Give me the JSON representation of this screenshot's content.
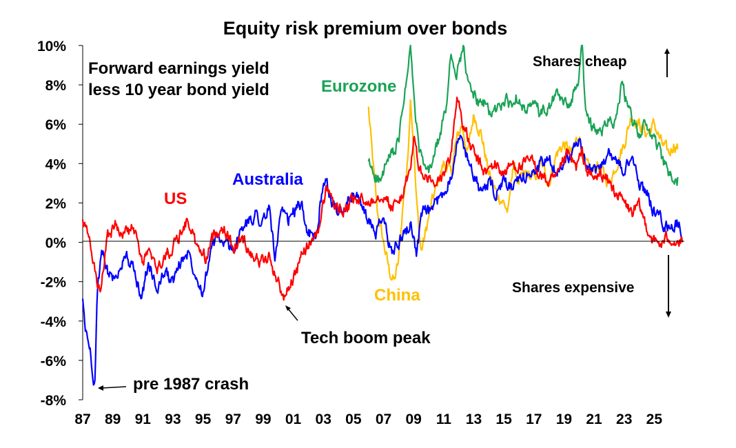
{
  "chart_data": {
    "type": "line",
    "title": "Equity risk premium over bonds",
    "subtitle_lines": [
      "Forward earnings yield",
      "less 10 year bond yield"
    ],
    "xlabel": "",
    "ylabel": "",
    "xlim": [
      1987,
      2027
    ],
    "ylim": [
      -8,
      10
    ],
    "y_ticks": [
      -8,
      -6,
      -4,
      -2,
      0,
      2,
      4,
      6,
      8,
      10
    ],
    "y_tick_labels": [
      "-8%",
      "-6%",
      "-4%",
      "-2%",
      "0%",
      "2%",
      "4%",
      "6%",
      "8%",
      "10%"
    ],
    "x_ticks": [
      1987,
      1989,
      1991,
      1993,
      1995,
      1997,
      1999,
      2001,
      2003,
      2005,
      2007,
      2009,
      2011,
      2013,
      2015,
      2017,
      2019,
      2021,
      2023,
      2025
    ],
    "x_tick_labels": [
      "87",
      "89",
      "91",
      "93",
      "95",
      "97",
      "99",
      "01",
      "03",
      "05",
      "07",
      "09",
      "11",
      "13",
      "15",
      "17",
      "19",
      "21",
      "23",
      "25"
    ],
    "grid": false,
    "legend": "none",
    "series": [
      {
        "name": "US",
        "color": "#ff0000",
        "x": [
          1987.0,
          1987.4,
          1987.8,
          1988.2,
          1988.6,
          1989.2,
          1989.8,
          1990.4,
          1990.9,
          1991.4,
          1991.9,
          1992.4,
          1993.0,
          1993.6,
          1994.0,
          1994.6,
          1995.2,
          1995.8,
          1996.4,
          1997.0,
          1997.6,
          1998.2,
          1998.8,
          1999.4,
          1999.8,
          2000.1,
          2000.4,
          2000.8,
          2001.2,
          2001.6,
          2002.0,
          2002.4,
          2002.8,
          2003.2,
          2003.6,
          2004.0,
          2004.6,
          2005.2,
          2005.8,
          2006.4,
          2007.0,
          2007.5,
          2008.0,
          2008.4,
          2008.8,
          2009.0,
          2009.3,
          2009.6,
          2010.0,
          2010.5,
          2011.0,
          2011.5,
          2011.9,
          2012.3,
          2012.7,
          2013.2,
          2013.8,
          2014.4,
          2015.0,
          2015.6,
          2016.2,
          2016.8,
          2017.4,
          2018.0,
          2018.6,
          2019.2,
          2019.8,
          2020.2,
          2020.6,
          2021.0,
          2021.5,
          2022.0,
          2022.5,
          2023.0,
          2023.5,
          2024.0,
          2024.5,
          2025.0,
          2025.5,
          2026.0,
          2026.5,
          2026.9
        ],
        "values": [
          1.0,
          0.2,
          -1.5,
          -2.8,
          0.3,
          0.9,
          0.5,
          0.7,
          -1.0,
          -0.5,
          -1.5,
          -0.8,
          -0.2,
          0.6,
          1.2,
          -0.3,
          -0.8,
          0.5,
          0.8,
          -0.3,
          0.2,
          -0.5,
          -1.0,
          -0.8,
          -1.6,
          -2.2,
          -2.9,
          -2.0,
          -1.6,
          -0.5,
          -0.2,
          0.3,
          0.9,
          2.9,
          2.2,
          1.5,
          1.8,
          2.2,
          2.0,
          2.3,
          2.5,
          1.8,
          2.0,
          2.8,
          3.6,
          5.5,
          4.0,
          3.3,
          3.2,
          2.8,
          3.5,
          4.5,
          7.5,
          6.0,
          5.0,
          4.2,
          3.5,
          4.0,
          3.5,
          4.0,
          3.8,
          4.2,
          3.5,
          3.0,
          3.3,
          4.5,
          3.8,
          4.5,
          3.5,
          3.2,
          3.5,
          3.0,
          2.5,
          2.0,
          1.5,
          1.8,
          0.8,
          0.0,
          -0.1,
          0.3,
          0.0,
          -0.1
        ]
      },
      {
        "name": "Australia",
        "color": "#0000ff",
        "x": [
          1987.0,
          1987.2,
          1987.5,
          1987.8,
          1988.0,
          1988.3,
          1988.7,
          1989.2,
          1989.8,
          1990.4,
          1990.9,
          1991.4,
          1991.9,
          1992.4,
          1993.0,
          1993.5,
          1994.0,
          1994.5,
          1995.0,
          1995.5,
          1996.0,
          1996.5,
          1997.0,
          1997.5,
          1998.0,
          1998.5,
          1999.0,
          1999.4,
          1999.8,
          2000.2,
          2000.6,
          2001.0,
          2001.5,
          2002.0,
          2002.5,
          2002.8,
          2003.2,
          2003.6,
          2004.0,
          2004.5,
          2005.0,
          2005.5,
          2006.0,
          2006.5,
          2007.0,
          2007.5,
          2008.0,
          2008.4,
          2008.8,
          2009.2,
          2009.6,
          2010.0,
          2010.5,
          2011.0,
          2011.5,
          2012.0,
          2012.5,
          2013.0,
          2013.5,
          2014.0,
          2014.5,
          2015.0,
          2015.5,
          2016.0,
          2016.5,
          2017.0,
          2017.5,
          2018.0,
          2018.5,
          2019.0,
          2019.5,
          2020.0,
          2020.5,
          2021.0,
          2021.5,
          2022.0,
          2022.5,
          2023.0,
          2023.5,
          2024.0,
          2024.5,
          2025.0,
          2025.4,
          2025.8,
          2026.2,
          2026.6,
          2026.9
        ],
        "values": [
          -3.0,
          -4.5,
          -5.5,
          -7.3,
          -2.0,
          -0.6,
          -1.5,
          -2.0,
          -0.5,
          -1.5,
          -2.8,
          -1.0,
          -2.5,
          -1.5,
          -2.0,
          -1.0,
          -0.5,
          -1.5,
          -2.5,
          -0.5,
          0.3,
          -0.2,
          -0.3,
          0.5,
          1.0,
          1.5,
          1.0,
          1.8,
          -0.8,
          1.5,
          1.0,
          1.5,
          2.0,
          0.5,
          0.2,
          2.0,
          3.0,
          2.0,
          1.5,
          2.0,
          2.5,
          2.0,
          1.0,
          0.5,
          1.2,
          -0.5,
          0.0,
          0.5,
          1.0,
          -0.5,
          1.5,
          1.5,
          2.0,
          2.5,
          3.5,
          5.5,
          4.5,
          3.5,
          2.5,
          3.0,
          2.5,
          3.0,
          2.8,
          3.0,
          3.5,
          3.5,
          4.0,
          4.2,
          3.5,
          4.2,
          4.5,
          5.0,
          3.8,
          3.5,
          4.0,
          4.5,
          4.2,
          3.5,
          4.5,
          3.0,
          2.5,
          1.5,
          1.2,
          0.8,
          0.8,
          1.0,
          0.3
        ]
      },
      {
        "name": "Eurozone",
        "color": "#1aa355",
        "x": [
          2006.0,
          2006.4,
          2006.8,
          2007.2,
          2007.6,
          2008.0,
          2008.3,
          2008.6,
          2008.8,
          2009.0,
          2009.3,
          2009.6,
          2010.0,
          2010.4,
          2010.8,
          2011.2,
          2011.5,
          2011.8,
          2012.0,
          2012.3,
          2012.6,
          2013.0,
          2013.4,
          2013.8,
          2014.2,
          2014.6,
          2015.0,
          2015.5,
          2016.0,
          2016.5,
          2017.0,
          2017.5,
          2018.0,
          2018.5,
          2019.0,
          2019.5,
          2019.9,
          2020.2,
          2020.4,
          2020.8,
          2021.2,
          2021.6,
          2022.0,
          2022.4,
          2022.8,
          2023.2,
          2023.6,
          2024.0,
          2024.4,
          2024.8,
          2025.2,
          2025.6,
          2026.0,
          2026.3,
          2026.6
        ],
        "values": [
          4.0,
          3.5,
          3.0,
          4.0,
          4.5,
          5.0,
          7.0,
          8.5,
          10.0,
          7.5,
          5.0,
          4.0,
          3.5,
          4.5,
          5.5,
          7.0,
          10.0,
          8.0,
          9.0,
          10.0,
          8.0,
          7.5,
          7.0,
          7.0,
          6.5,
          6.8,
          7.2,
          7.0,
          7.5,
          6.5,
          7.0,
          6.5,
          6.8,
          7.5,
          7.0,
          7.2,
          8.0,
          10.0,
          7.0,
          6.0,
          5.5,
          5.8,
          6.5,
          6.0,
          8.0,
          7.0,
          6.0,
          5.5,
          6.0,
          5.5,
          5.0,
          4.0,
          3.5,
          3.0,
          3.2
        ]
      },
      {
        "name": "China",
        "color": "#ffc000",
        "x": [
          2006.0,
          2006.3,
          2006.6,
          2007.0,
          2007.4,
          2007.7,
          2008.0,
          2008.3,
          2008.6,
          2008.8,
          2009.0,
          2009.2,
          2009.5,
          2009.8,
          2010.2,
          2010.6,
          2011.0,
          2011.5,
          2011.8,
          2012.2,
          2012.6,
          2013.0,
          2013.5,
          2014.0,
          2014.5,
          2015.0,
          2015.3,
          2015.6,
          2016.0,
          2016.5,
          2017.0,
          2017.5,
          2018.0,
          2018.5,
          2019.0,
          2019.5,
          2020.0,
          2020.4,
          2020.8,
          2021.2,
          2021.6,
          2022.0,
          2022.5,
          2023.0,
          2023.5,
          2024.0,
          2024.5,
          2025.0,
          2025.5,
          2026.0,
          2026.3,
          2026.6
        ],
        "values": [
          6.8,
          4.0,
          1.5,
          0.0,
          -1.5,
          -2.0,
          -1.0,
          2.0,
          4.0,
          7.5,
          5.0,
          2.0,
          -0.5,
          0.5,
          2.0,
          3.0,
          4.0,
          3.5,
          5.0,
          6.0,
          4.5,
          6.5,
          5.5,
          3.5,
          2.5,
          2.0,
          1.5,
          4.0,
          3.0,
          3.5,
          3.2,
          4.0,
          3.0,
          4.5,
          5.0,
          4.5,
          5.5,
          4.0,
          3.5,
          4.0,
          3.5,
          3.0,
          4.0,
          5.0,
          6.5,
          6.0,
          5.5,
          6.0,
          5.0,
          4.5,
          5.0,
          4.8
        ]
      }
    ],
    "annotations": {
      "series_labels": [
        "US",
        "Australia",
        "Eurozone",
        "China"
      ],
      "tech_boom": "Tech boom peak",
      "crash": "pre 1987 crash",
      "cheap": "Shares cheap",
      "expensive": "Shares expensive"
    }
  }
}
